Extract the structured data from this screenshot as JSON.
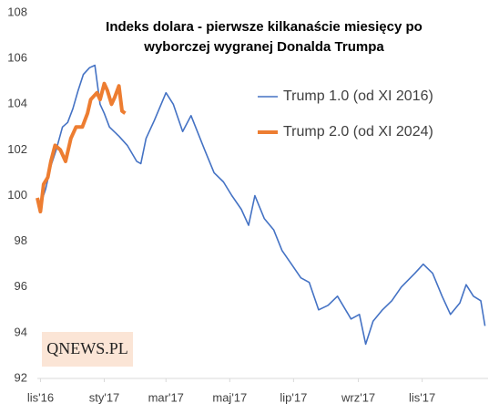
{
  "chart_data": {
    "type": "line",
    "title": [
      "Indeks dolara - pierwsze kilkanaście miesięcy po",
      "wyborczej wygranej Donalda Trumpa"
    ],
    "logo": "QNEWS.PL",
    "xlim": [
      -3,
      428
    ],
    "xticks": [
      {
        "value": 0,
        "label": "lis'16"
      },
      {
        "value": 61,
        "label": "sty'17"
      },
      {
        "value": 120,
        "label": "mar'17"
      },
      {
        "value": 181,
        "label": "maj'17"
      },
      {
        "value": 242,
        "label": "lip'17"
      },
      {
        "value": 304,
        "label": "wrz'17"
      },
      {
        "value": 365,
        "label": "lis'17"
      }
    ],
    "ylim": [
      92,
      108
    ],
    "yticks": [
      92,
      94,
      96,
      98,
      100,
      102,
      104,
      106,
      108
    ],
    "legend_position": "upper right",
    "series": [
      {
        "name": "Trump 1.0 (od XI 2016)",
        "color": "#4472c4",
        "width": 1.6,
        "x": [
          0,
          5,
          10,
          15,
          21,
          26,
          31,
          36,
          41,
          47,
          52,
          57,
          61,
          66,
          75,
          83,
          92,
          96,
          101,
          109,
          120,
          127,
          136,
          144,
          157,
          166,
          175,
          183,
          192,
          199,
          205,
          214,
          223,
          231,
          240,
          249,
          257,
          266,
          275,
          284,
          297,
          305,
          311,
          318,
          327,
          336,
          345,
          358,
          366,
          375,
          384,
          392,
          401,
          407,
          414,
          421,
          425
        ],
        "values": [
          99.6,
          100.3,
          101.3,
          102.0,
          103.0,
          103.2,
          103.8,
          104.6,
          105.3,
          105.6,
          105.7,
          104.0,
          103.6,
          103.0,
          102.6,
          102.2,
          101.5,
          101.4,
          102.5,
          103.3,
          104.5,
          104.0,
          102.8,
          103.5,
          102.0,
          101.0,
          100.6,
          100.0,
          99.4,
          98.7,
          100.0,
          99.0,
          98.5,
          97.6,
          97.0,
          96.4,
          96.2,
          95.0,
          95.2,
          95.6,
          94.6,
          94.8,
          93.5,
          94.5,
          95.0,
          95.4,
          96.0,
          96.6,
          97.0,
          96.6,
          95.6,
          94.8,
          95.3,
          96.1,
          95.6,
          95.4,
          94.3
        ]
      },
      {
        "name": "Trump 2.0 (od XI 2024)",
        "color": "#ed7d31",
        "width": 4,
        "x": [
          -3,
          0,
          3,
          7,
          10,
          14,
          19,
          24,
          29,
          34,
          40,
          45,
          48,
          54,
          57,
          61,
          64,
          68,
          71,
          75,
          78,
          81
        ],
        "values": [
          99.9,
          99.3,
          100.5,
          100.8,
          101.5,
          102.2,
          102.0,
          101.5,
          102.5,
          103.0,
          103.0,
          103.6,
          104.2,
          104.5,
          104.2,
          104.9,
          104.6,
          104.0,
          104.3,
          104.8,
          103.7,
          103.6
        ]
      }
    ]
  }
}
